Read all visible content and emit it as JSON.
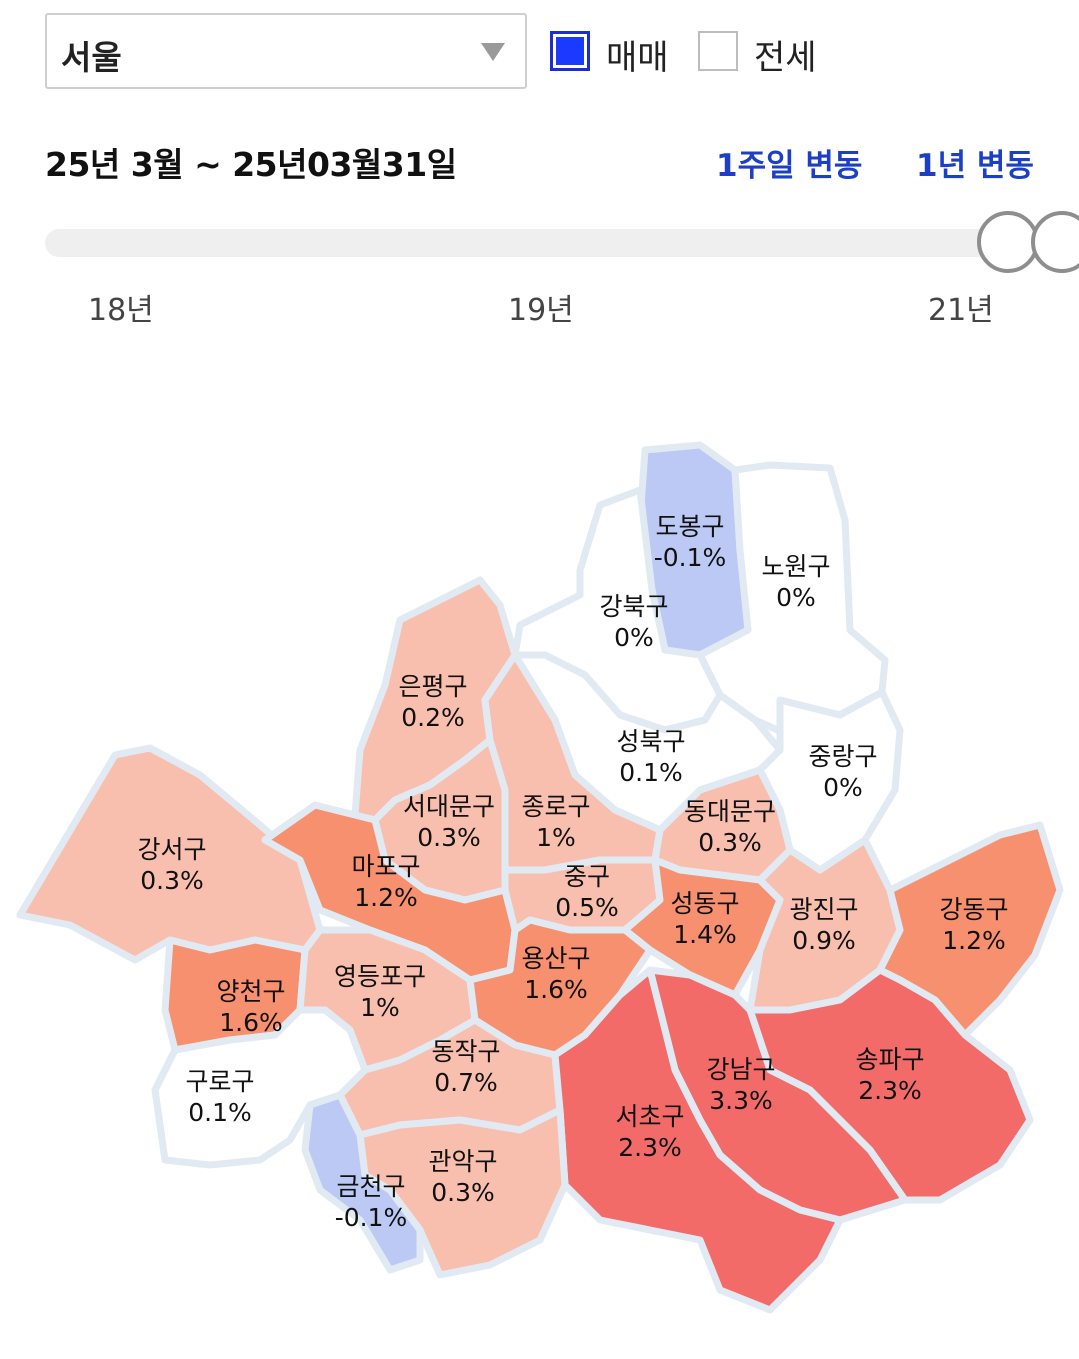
{
  "region_select": {
    "value": "서울"
  },
  "filters": {
    "sale_label": "매매",
    "sale_checked": true,
    "jeonse_label": "전세",
    "jeonse_checked": false
  },
  "period": {
    "label": "25년 3월 ~ 25년03월31일"
  },
  "buttons": {
    "week_change": "1주일 변동",
    "year_change": "1년 변동"
  },
  "timeline": {
    "ticks": [
      "18년",
      "19년",
      "21년"
    ],
    "position": 1.0
  },
  "colors": {
    "accent": "#1c3fc4",
    "negative": "#bcc9f5",
    "zero": "#ffffff",
    "low": "#f8bfae",
    "mid": "#f6906f",
    "high": "#f26b68"
  },
  "districts": [
    {
      "name": "도봉구",
      "value": "-0.1%"
    },
    {
      "name": "노원구",
      "value": "0%"
    },
    {
      "name": "강북구",
      "value": "0%"
    },
    {
      "name": "은평구",
      "value": "0.2%"
    },
    {
      "name": "성북구",
      "value": "0.1%"
    },
    {
      "name": "중랑구",
      "value": "0%"
    },
    {
      "name": "서대문구",
      "value": "0.3%"
    },
    {
      "name": "종로구",
      "value": "1%"
    },
    {
      "name": "동대문구",
      "value": "0.3%"
    },
    {
      "name": "강서구",
      "value": "0.3%"
    },
    {
      "name": "마포구",
      "value": "1.2%"
    },
    {
      "name": "중구",
      "value": "0.5%"
    },
    {
      "name": "성동구",
      "value": "1.4%"
    },
    {
      "name": "광진구",
      "value": "0.9%"
    },
    {
      "name": "강동구",
      "value": "1.2%"
    },
    {
      "name": "양천구",
      "value": "1.6%"
    },
    {
      "name": "영등포구",
      "value": "1%"
    },
    {
      "name": "용산구",
      "value": "1.6%"
    },
    {
      "name": "송파구",
      "value": "2.3%"
    },
    {
      "name": "강남구",
      "value": "3.3%"
    },
    {
      "name": "구로구",
      "value": "0.1%"
    },
    {
      "name": "동작구",
      "value": "0.7%"
    },
    {
      "name": "서초구",
      "value": "2.3%"
    },
    {
      "name": "관악구",
      "value": "0.3%"
    },
    {
      "name": "금천구",
      "value": "-0.1%"
    }
  ]
}
